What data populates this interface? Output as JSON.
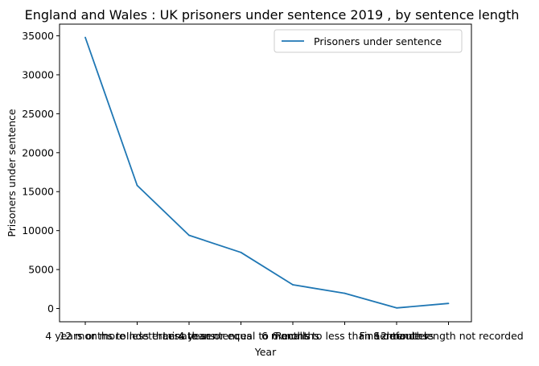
{
  "chart_data": {
    "type": "line",
    "title": "England and Wales : UK prisoners under sentence 2019 , by sentence length",
    "xlabel": "Year",
    "ylabel": "Prisoners under sentence",
    "categories": [
      "4 years or more",
      "12 months to less than 4 years",
      "Indeterminate sentences",
      "Less than or equal to 6 months",
      "Recalls",
      "6 months to less than 12 months",
      "Fine defaulters",
      "Sentence length not recorded"
    ],
    "series": [
      {
        "name": "Prisoners under sentence",
        "color": "#1f77b4",
        "values": [
          34800,
          15800,
          9400,
          7200,
          3050,
          1950,
          80,
          650
        ]
      }
    ],
    "yticks": [
      0,
      5000,
      10000,
      15000,
      20000,
      25000,
      30000,
      35000
    ],
    "ylim": [
      -1700,
      36500
    ],
    "grid": false,
    "legend_position": "top-right"
  }
}
